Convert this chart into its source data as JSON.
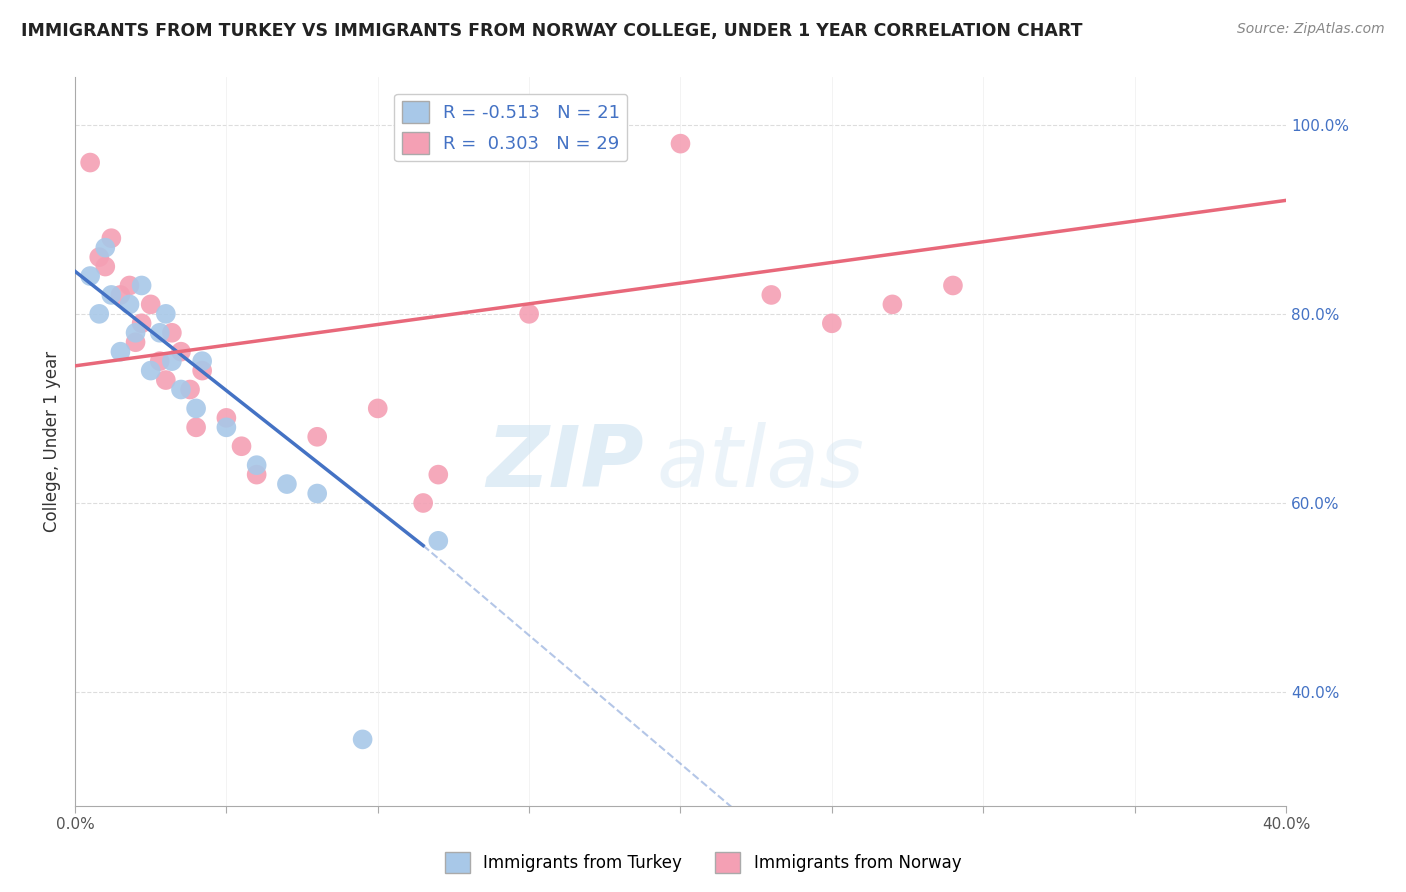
{
  "title": "IMMIGRANTS FROM TURKEY VS IMMIGRANTS FROM NORWAY COLLEGE, UNDER 1 YEAR CORRELATION CHART",
  "source": "Source: ZipAtlas.com",
  "ylabel": "College, Under 1 year",
  "xlim": [
    0.0,
    0.4
  ],
  "ylim": [
    0.28,
    1.05
  ],
  "xticks": [
    0.0,
    0.05,
    0.1,
    0.15,
    0.2,
    0.25,
    0.3,
    0.35,
    0.4
  ],
  "xticklabels_show": [
    "0.0%",
    "",
    "",
    "",
    "",
    "",
    "",
    "",
    "40.0%"
  ],
  "yticks_right": [
    0.4,
    0.6,
    0.8,
    1.0
  ],
  "yticklabels_right": [
    "40.0%",
    "60.0%",
    "80.0%",
    "100.0%"
  ],
  "legend_r_turkey": "-0.513",
  "legend_n_turkey": "21",
  "legend_r_norway": "0.303",
  "legend_n_norway": "29",
  "turkey_color": "#a8c8e8",
  "norway_color": "#f4a0b4",
  "turkey_line_color": "#4472c4",
  "norway_line_color": "#e8687a",
  "watermark_zip": "ZIP",
  "watermark_atlas": "atlas",
  "turkey_points": [
    [
      0.005,
      0.84
    ],
    [
      0.008,
      0.8
    ],
    [
      0.01,
      0.87
    ],
    [
      0.012,
      0.82
    ],
    [
      0.015,
      0.76
    ],
    [
      0.018,
      0.81
    ],
    [
      0.02,
      0.78
    ],
    [
      0.022,
      0.83
    ],
    [
      0.025,
      0.74
    ],
    [
      0.028,
      0.78
    ],
    [
      0.03,
      0.8
    ],
    [
      0.032,
      0.75
    ],
    [
      0.035,
      0.72
    ],
    [
      0.04,
      0.7
    ],
    [
      0.042,
      0.75
    ],
    [
      0.05,
      0.68
    ],
    [
      0.06,
      0.64
    ],
    [
      0.07,
      0.62
    ],
    [
      0.08,
      0.61
    ],
    [
      0.095,
      0.35
    ],
    [
      0.12,
      0.56
    ]
  ],
  "norway_points": [
    [
      0.005,
      0.96
    ],
    [
      0.008,
      0.86
    ],
    [
      0.01,
      0.85
    ],
    [
      0.012,
      0.88
    ],
    [
      0.015,
      0.82
    ],
    [
      0.018,
      0.83
    ],
    [
      0.02,
      0.77
    ],
    [
      0.022,
      0.79
    ],
    [
      0.025,
      0.81
    ],
    [
      0.028,
      0.75
    ],
    [
      0.03,
      0.73
    ],
    [
      0.032,
      0.78
    ],
    [
      0.035,
      0.76
    ],
    [
      0.038,
      0.72
    ],
    [
      0.04,
      0.68
    ],
    [
      0.042,
      0.74
    ],
    [
      0.05,
      0.69
    ],
    [
      0.055,
      0.66
    ],
    [
      0.06,
      0.63
    ],
    [
      0.08,
      0.67
    ],
    [
      0.1,
      0.7
    ],
    [
      0.115,
      0.6
    ],
    [
      0.12,
      0.63
    ],
    [
      0.15,
      0.8
    ],
    [
      0.2,
      0.98
    ],
    [
      0.23,
      0.82
    ],
    [
      0.25,
      0.79
    ],
    [
      0.27,
      0.81
    ],
    [
      0.29,
      0.83
    ]
  ],
  "turkey_line_solid": [
    [
      0.0,
      0.845
    ],
    [
      0.115,
      0.555
    ]
  ],
  "turkey_line_dash": [
    [
      0.115,
      0.555
    ],
    [
      0.22,
      0.27
    ]
  ],
  "norway_line": [
    [
      0.0,
      0.745
    ],
    [
      0.4,
      0.92
    ]
  ]
}
